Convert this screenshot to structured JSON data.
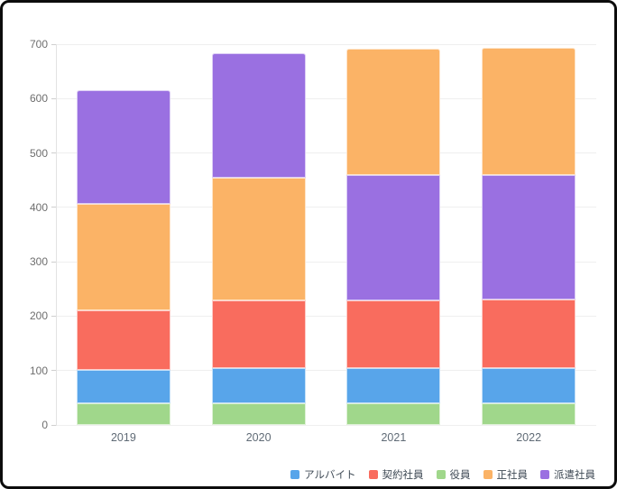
{
  "window": {
    "background": "#ffffff",
    "frame_border_color": "#0c0c0c"
  },
  "chart_data": {
    "type": "bar",
    "stacked": true,
    "title": "",
    "xlabel": "",
    "ylabel": "",
    "categories": [
      "2019",
      "2020",
      "2021",
      "2022"
    ],
    "series": [
      {
        "name": "アルバイト",
        "color": "#58A5EA",
        "values": [
          62,
          65,
          64,
          64
        ]
      },
      {
        "name": "契約社員",
        "color": "#F96C5E",
        "values": [
          108,
          124,
          125,
          126
        ]
      },
      {
        "name": "役員",
        "color": "#A0D78B",
        "values": [
          40,
          40,
          40,
          40
        ]
      },
      {
        "name": "正社員",
        "color": "#FBB366",
        "values": [
          196,
          225,
          232,
          235
        ]
      },
      {
        "name": "派遣社員",
        "color": "#9A70E1",
        "values": [
          210,
          230,
          230,
          229
        ]
      }
    ],
    "stack_order_bottom_to_top": [
      [
        "役員",
        "アルバイト",
        "契約社員",
        "正社員",
        "派遣社員"
      ],
      [
        "役員",
        "アルバイト",
        "契約社員",
        "正社員",
        "派遣社員"
      ],
      [
        "役員",
        "アルバイト",
        "契約社員",
        "派遣社員",
        "正社員"
      ],
      [
        "役員",
        "アルバイト",
        "契約社員",
        "派遣社員",
        "正社員"
      ]
    ],
    "bar_totals": [
      616,
      684,
      691,
      694
    ],
    "y_axis": {
      "min": 0,
      "max": 700,
      "tick_step": 100,
      "tick_labels": [
        "0",
        "100",
        "200",
        "300",
        "400",
        "500",
        "600",
        "700"
      ]
    },
    "legend": {
      "position": "bottom-right",
      "items": [
        "アルバイト",
        "契約社員",
        "役員",
        "正社員",
        "派遣社員"
      ]
    },
    "grid": true
  },
  "colors": {
    "gridline": "#efefef",
    "axis_line": "#e2e2e2",
    "tick_mark": "#cfcfcf",
    "y_tick_text": "#6e6e6e",
    "x_tick_text": "#606b76",
    "legend_text": "#3f4a55"
  }
}
